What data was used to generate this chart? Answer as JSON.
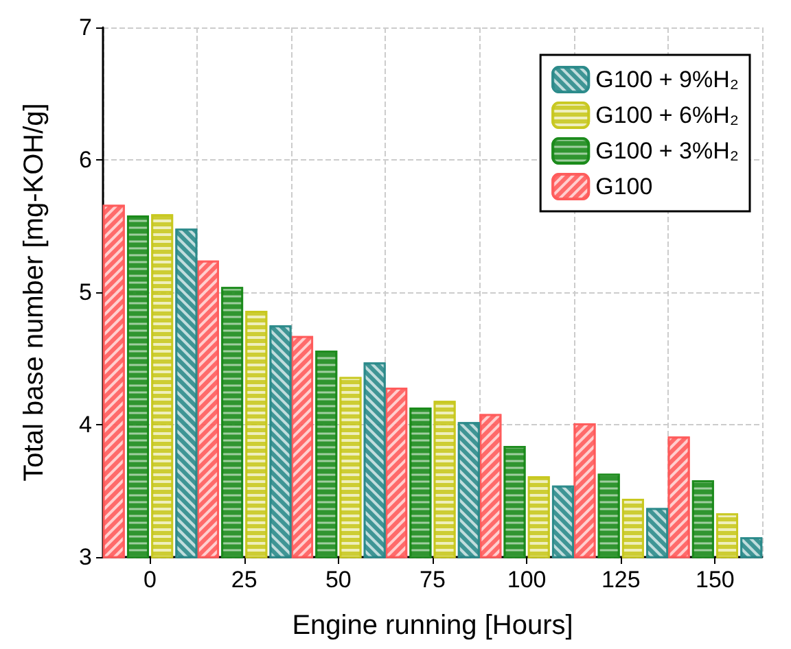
{
  "chart_data": {
    "type": "bar",
    "xlabel": "Engine running [Hours]",
    "ylabel": "Total base number [mg-KOH/g]",
    "categories": [
      "0",
      "25",
      "50",
      "75",
      "100",
      "125",
      "150"
    ],
    "series": [
      {
        "name": "G100",
        "color": "#ff5a5a",
        "values": [
          5.66,
          5.24,
          4.67,
          4.28,
          4.08,
          4.01,
          3.91
        ]
      },
      {
        "name": "G100 + 3%H₂",
        "color": "#1a8a1a",
        "values": [
          5.58,
          5.04,
          4.56,
          4.13,
          3.84,
          3.63,
          3.58
        ]
      },
      {
        "name": "G100 + 6%H₂",
        "color": "#c8c81e",
        "values": [
          5.59,
          4.86,
          4.36,
          4.18,
          3.61,
          3.44,
          3.33
        ]
      },
      {
        "name": "G100 + 9%H₂",
        "color": "#2a8a8a",
        "values": [
          5.48,
          4.75,
          4.47,
          4.02,
          3.54,
          3.37,
          3.15
        ]
      }
    ],
    "ylim": [
      3,
      7
    ],
    "yticks": [
      3,
      4,
      5,
      6,
      7
    ],
    "grid": true,
    "legend": "top right"
  }
}
